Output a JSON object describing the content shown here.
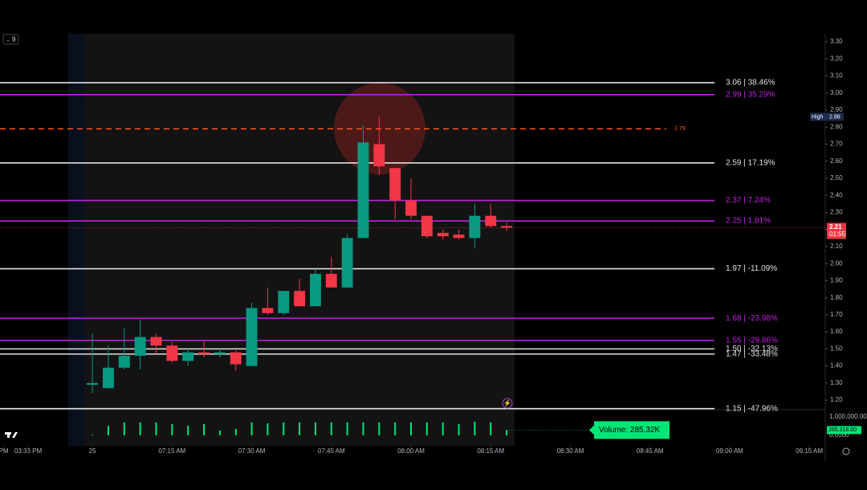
{
  "chart_data": {
    "type": "candlestick",
    "x": [
      0,
      3,
      6,
      9,
      12,
      15,
      18,
      21,
      24,
      27,
      30,
      33,
      36,
      39,
      42,
      45,
      48,
      51,
      54,
      57,
      60,
      63,
      66,
      69,
      72,
      75,
      78
    ],
    "open": [
      1.29,
      1.27,
      1.39,
      1.46,
      1.57,
      1.52,
      1.43,
      1.48,
      1.47,
      1.48,
      1.4,
      1.74,
      1.71,
      1.84,
      1.75,
      1.94,
      1.86,
      2.15,
      2.7,
      2.56,
      2.37,
      2.28,
      2.18,
      2.17,
      2.15,
      2.28,
      2.22
    ],
    "high": [
      1.59,
      1.52,
      1.62,
      1.67,
      1.59,
      1.54,
      1.5,
      1.55,
      1.5,
      1.49,
      1.77,
      1.86,
      1.84,
      1.91,
      1.97,
      2.04,
      2.17,
      2.81,
      2.86,
      2.56,
      2.5,
      2.28,
      2.2,
      2.2,
      2.35,
      2.35,
      2.24
    ],
    "low": [
      1.24,
      1.27,
      1.38,
      1.38,
      1.47,
      1.42,
      1.4,
      1.45,
      1.45,
      1.37,
      1.4,
      1.7,
      1.7,
      1.75,
      1.75,
      1.86,
      1.86,
      2.15,
      2.52,
      2.26,
      2.26,
      2.15,
      2.14,
      2.14,
      2.09,
      2.21,
      2.19
    ],
    "close": [
      1.3,
      1.39,
      1.46,
      1.57,
      1.52,
      1.43,
      1.48,
      1.47,
      1.48,
      1.41,
      1.74,
      1.71,
      1.84,
      1.75,
      1.94,
      1.86,
      2.15,
      2.71,
      2.57,
      2.37,
      2.28,
      2.16,
      2.16,
      2.15,
      2.28,
      2.22,
      2.21
    ],
    "volume": [
      40000,
      520000,
      700000,
      700000,
      700000,
      610000,
      520000,
      610000,
      260000,
      350000,
      700000,
      650000,
      700000,
      700000,
      700000,
      700000,
      700000,
      700000,
      700000,
      700000,
      700000,
      700000,
      700000,
      610000,
      740000,
      700000,
      285318
    ],
    "up_color": "#089981",
    "down_color": "#f23645",
    "volume_color": "#00e676",
    "xlim": [
      -17.4,
      138
    ],
    "xticks": [
      {
        "value": -16.7,
        "label": "PM"
      },
      {
        "value": -12.1,
        "label": "03:33 PM"
      },
      {
        "value": 0,
        "label": "25"
      },
      {
        "value": 15,
        "label": "07:15 AM"
      },
      {
        "value": 30,
        "label": "07:30 AM"
      },
      {
        "value": 45,
        "label": "07:45 AM"
      },
      {
        "value": 60,
        "label": "08:00 AM"
      },
      {
        "value": 75,
        "label": "08:15 AM"
      },
      {
        "value": 90,
        "label": "08:30 AM"
      },
      {
        "value": 105,
        "label": "08:45 AM"
      },
      {
        "value": 120,
        "label": "09:00 AM"
      },
      {
        "value": 135,
        "label": "09:15 AM"
      }
    ],
    "ylim": [
      1.144,
      3.347
    ],
    "yticks": [
      {
        "value": 3.3,
        "label": "3.30"
      },
      {
        "value": 3.2,
        "label": "3.20"
      },
      {
        "value": 3.1,
        "label": "3.10"
      },
      {
        "value": 3.0,
        "label": "3.00"
      },
      {
        "value": 2.9,
        "label": "2.90"
      },
      {
        "value": 2.8,
        "label": "2.80"
      },
      {
        "value": 2.7,
        "label": "2.70"
      },
      {
        "value": 2.6,
        "label": "2.60"
      },
      {
        "value": 2.5,
        "label": "2.50"
      },
      {
        "value": 2.4,
        "label": "2.40"
      },
      {
        "value": 2.3,
        "label": "2.30"
      },
      {
        "value": 2.2,
        "label": "2.20"
      },
      {
        "value": 2.1,
        "label": "2.10"
      },
      {
        "value": 2.0,
        "label": "2.00"
      },
      {
        "value": 1.9,
        "label": "1.90"
      },
      {
        "value": 1.8,
        "label": "1.80"
      },
      {
        "value": 1.7,
        "label": "1.70"
      },
      {
        "value": 1.6,
        "label": "1.60"
      },
      {
        "value": 1.5,
        "label": "1.50"
      },
      {
        "value": 1.4,
        "label": "1.40"
      },
      {
        "value": 1.3,
        "label": "1.30"
      },
      {
        "value": 1.2,
        "label": "1.20"
      }
    ],
    "volume_lim": [
      -350000,
      1390000
    ],
    "volume_ticks": [
      {
        "value": 1000000,
        "label": "1,000,000.00"
      },
      {
        "value": 0,
        "label": "0.0000"
      }
    ],
    "volume_last_label": "285,318.00",
    "volume_tooltip": "Volume: 285.32K",
    "levels": [
      {
        "price": 3.06,
        "label": "3.06 | 38.46%",
        "color": "#e0e0e0"
      },
      {
        "price": 2.99,
        "label": "2.99 | 35.29%",
        "color": "#c020e0"
      },
      {
        "price": 2.79,
        "label": "2.79",
        "color": "#ff5722",
        "dashed": true
      },
      {
        "price": 2.59,
        "label": "2.59 | 17.19%",
        "color": "#e0e0e0"
      },
      {
        "price": 2.37,
        "label": "2.37 | 7.24%",
        "color": "#c020e0"
      },
      {
        "price": 2.25,
        "label": "2.25 | 1.81%",
        "color": "#c020e0"
      },
      {
        "price": 1.97,
        "label": "1.97 | -11.09%",
        "color": "#e0e0e0"
      },
      {
        "price": 1.68,
        "label": "1.68 | -23.98%",
        "color": "#c020e0"
      },
      {
        "price": 1.55,
        "label": "1.55 | -29.86%",
        "color": "#c020e0"
      },
      {
        "price": 1.5,
        "label": "1.50 | -32.13%",
        "color": "#e0e0e0"
      },
      {
        "price": 1.47,
        "label": "1.47 | -33.48%",
        "color": "#e0e0e0"
      },
      {
        "price": 1.15,
        "label": "1.15 | -47.96%",
        "color": "#e0e0e0"
      }
    ],
    "high_label": "High",
    "countdown": "01:55",
    "interval": "9"
  }
}
